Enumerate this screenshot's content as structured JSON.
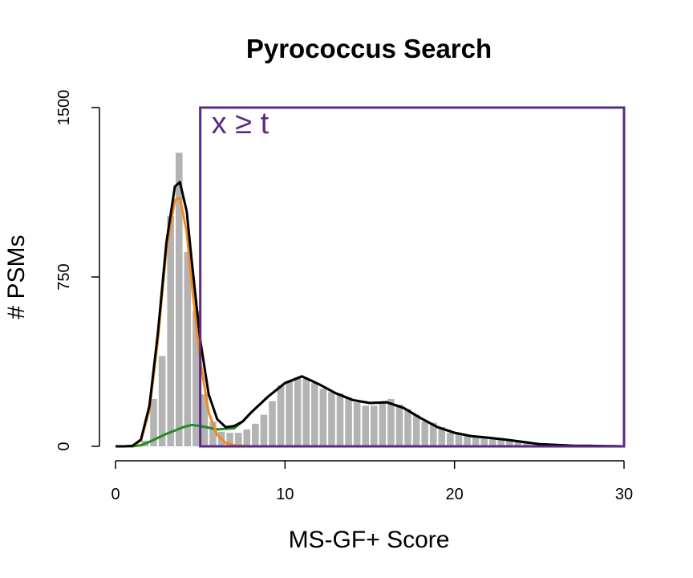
{
  "chart_data": {
    "type": "bar",
    "title": "Pyrococcus Search",
    "xlabel": "MS-GF+ Score",
    "ylabel": "# PSMs",
    "xlim": [
      0,
      30
    ],
    "ylim": [
      0,
      1500
    ],
    "x_ticks": [
      0,
      10,
      20,
      30
    ],
    "x_tick_labels": [
      "0",
      "10",
      "20",
      "30"
    ],
    "y_ticks": [
      0,
      750,
      1500
    ],
    "y_tick_labels": [
      "0",
      "750",
      "1500"
    ],
    "grid": false,
    "histogram": {
      "bin_width": 0.5,
      "bins": [
        [
          0.0,
          0
        ],
        [
          0.5,
          0
        ],
        [
          1.0,
          5
        ],
        [
          1.5,
          25
        ],
        [
          2.0,
          210
        ],
        [
          2.5,
          400
        ],
        [
          3.0,
          1020
        ],
        [
          3.5,
          1300
        ],
        [
          4.0,
          860
        ],
        [
          4.5,
          600
        ],
        [
          5.0,
          230
        ],
        [
          5.5,
          110
        ],
        [
          6.0,
          65
        ],
        [
          6.5,
          60
        ],
        [
          7.0,
          60
        ],
        [
          7.5,
          75
        ],
        [
          8.0,
          100
        ],
        [
          8.5,
          140
        ],
        [
          9.0,
          200
        ],
        [
          9.5,
          270
        ],
        [
          10.0,
          290
        ],
        [
          10.5,
          305
        ],
        [
          11.0,
          300
        ],
        [
          11.5,
          280
        ],
        [
          12.0,
          255
        ],
        [
          12.5,
          240
        ],
        [
          13.0,
          235
        ],
        [
          13.5,
          215
        ],
        [
          14.0,
          195
        ],
        [
          14.5,
          180
        ],
        [
          15.0,
          180
        ],
        [
          15.5,
          190
        ],
        [
          16.0,
          210
        ],
        [
          16.5,
          185
        ],
        [
          17.0,
          165
        ],
        [
          17.5,
          140
        ],
        [
          18.0,
          110
        ],
        [
          18.5,
          105
        ],
        [
          19.0,
          85
        ],
        [
          19.5,
          60
        ],
        [
          20.0,
          55
        ],
        [
          20.5,
          50
        ],
        [
          21.0,
          45
        ],
        [
          21.5,
          45
        ],
        [
          22.0,
          35
        ],
        [
          22.5,
          30
        ],
        [
          23.0,
          28
        ],
        [
          23.5,
          20
        ],
        [
          24.0,
          15
        ],
        [
          24.5,
          10
        ],
        [
          25.0,
          8
        ],
        [
          25.5,
          5
        ],
        [
          26.0,
          3
        ],
        [
          26.5,
          2
        ],
        [
          27.0,
          1
        ],
        [
          27.5,
          0
        ],
        [
          28.0,
          0
        ],
        [
          28.5,
          0
        ],
        [
          29.0,
          0
        ],
        [
          29.5,
          0
        ]
      ],
      "color": "#b3b3b3"
    },
    "series": [
      {
        "color": "#000000",
        "points": [
          [
            0,
            0
          ],
          [
            0.5,
            0
          ],
          [
            1,
            2
          ],
          [
            1.5,
            30
          ],
          [
            2,
            180
          ],
          [
            2.5,
            500
          ],
          [
            3,
            900
          ],
          [
            3.5,
            1150
          ],
          [
            3.8,
            1170
          ],
          [
            4.2,
            1040
          ],
          [
            4.5,
            820
          ],
          [
            5,
            470
          ],
          [
            5.5,
            230
          ],
          [
            6,
            120
          ],
          [
            6.5,
            85
          ],
          [
            7,
            90
          ],
          [
            7.5,
            110
          ],
          [
            8,
            150
          ],
          [
            9,
            220
          ],
          [
            10,
            280
          ],
          [
            11,
            310
          ],
          [
            12,
            275
          ],
          [
            13,
            235
          ],
          [
            14,
            205
          ],
          [
            15,
            192
          ],
          [
            16,
            195
          ],
          [
            17,
            170
          ],
          [
            18,
            125
          ],
          [
            19,
            85
          ],
          [
            20,
            60
          ],
          [
            21,
            45
          ],
          [
            22,
            38
          ],
          [
            23,
            30
          ],
          [
            24,
            20
          ],
          [
            25,
            10
          ],
          [
            26,
            6
          ],
          [
            27,
            3
          ],
          [
            28,
            2
          ],
          [
            29,
            1
          ],
          [
            30,
            0
          ]
        ]
      },
      {
        "color": "#f28a1f",
        "points": [
          [
            0,
            0
          ],
          [
            0.5,
            0
          ],
          [
            1,
            2
          ],
          [
            1.5,
            25
          ],
          [
            2,
            160
          ],
          [
            2.5,
            470
          ],
          [
            3,
            870
          ],
          [
            3.5,
            1090
          ],
          [
            3.8,
            1100
          ],
          [
            4.2,
            950
          ],
          [
            4.5,
            720
          ],
          [
            5,
            380
          ],
          [
            5.5,
            150
          ],
          [
            6,
            50
          ],
          [
            6.5,
            15
          ],
          [
            7,
            5
          ],
          [
            8,
            0
          ],
          [
            30,
            0
          ]
        ]
      },
      {
        "color": "#228b22",
        "points": [
          [
            0,
            0
          ],
          [
            1,
            0
          ],
          [
            1.5,
            5
          ],
          [
            2,
            20
          ],
          [
            3,
            55
          ],
          [
            4,
            85
          ],
          [
            4.5,
            95
          ],
          [
            5,
            90
          ],
          [
            6,
            75
          ],
          [
            7,
            80
          ],
          [
            7.5,
            110
          ],
          [
            8,
            150
          ],
          [
            9,
            220
          ],
          [
            10,
            280
          ],
          [
            11,
            310
          ],
          [
            12,
            275
          ],
          [
            13,
            235
          ],
          [
            14,
            205
          ],
          [
            15,
            192
          ],
          [
            16,
            195
          ],
          [
            17,
            170
          ],
          [
            18,
            125
          ],
          [
            19,
            85
          ],
          [
            20,
            60
          ],
          [
            21,
            45
          ],
          [
            22,
            38
          ],
          [
            23,
            30
          ],
          [
            24,
            20
          ],
          [
            25,
            10
          ],
          [
            26,
            6
          ],
          [
            27,
            3
          ],
          [
            28,
            2
          ],
          [
            29,
            1
          ],
          [
            30,
            0
          ]
        ]
      }
    ],
    "annotation": {
      "text": "x ≥ t",
      "color": "#5b2a86",
      "region": {
        "x_from": 5,
        "x_to": 30,
        "y_from": 0,
        "y_to": 1500
      }
    }
  }
}
